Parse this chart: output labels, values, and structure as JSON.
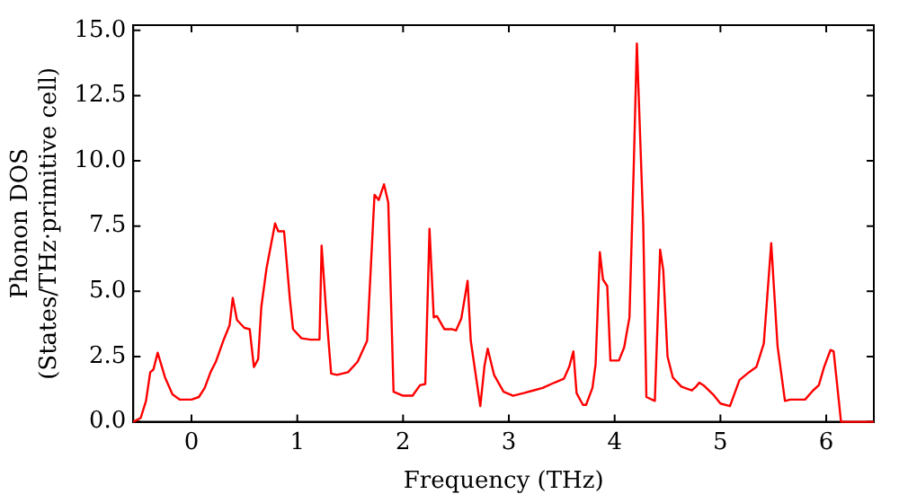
{
  "chart_data": {
    "type": "line",
    "xlabel": "Frequency (THz)",
    "ylabel": "Phonon DOS\n(States/THz·primitive cell)",
    "x": [
      -0.55,
      -0.48,
      -0.43,
      -0.39,
      -0.36,
      -0.32,
      -0.25,
      -0.18,
      -0.11,
      0,
      0.07,
      0.125,
      0.18,
      0.23,
      0.3,
      0.36,
      0.39,
      0.43,
      0.5,
      0.55,
      0.59,
      0.63,
      0.66,
      0.71,
      0.79,
      0.82,
      0.875,
      0.93,
      0.96,
      1.04,
      1.125,
      1.21,
      1.23,
      1.27,
      1.32,
      1.375,
      1.48,
      1.57,
      1.66,
      1.73,
      1.77,
      1.82,
      1.86,
      1.91,
      2.0,
      2.09,
      2.16,
      2.21,
      2.25,
      2.29,
      2.32,
      2.39,
      2.46,
      2.5,
      2.55,
      2.61,
      2.64,
      2.73,
      2.77,
      2.8,
      2.86,
      2.95,
      3.04,
      3.14,
      3.23,
      3.32,
      3.43,
      3.52,
      3.57,
      3.61,
      3.64,
      3.7,
      3.73,
      3.79,
      3.82,
      3.86,
      3.89,
      3.93,
      3.96,
      4.04,
      4.09,
      4.14,
      4.18,
      4.21,
      4.27,
      4.3,
      4.38,
      4.43,
      4.46,
      4.5,
      4.55,
      4.63,
      4.73,
      4.77,
      4.8,
      4.84,
      4.93,
      5.0,
      5.09,
      5.18,
      5.27,
      5.34,
      5.41,
      5.48,
      5.54,
      5.61,
      5.66,
      5.8,
      5.875,
      5.93,
      5.98,
      6.04,
      6.07,
      6.14,
      6.45
    ],
    "series": [
      {
        "color": "#ff0000",
        "values": [
          0,
          0.15,
          0.8,
          1.9,
          2.0,
          2.65,
          1.7,
          1.05,
          0.85,
          0.85,
          0.95,
          1.3,
          1.9,
          2.3,
          3.1,
          3.7,
          4.75,
          3.9,
          3.6,
          3.55,
          2.1,
          2.4,
          4.4,
          5.9,
          7.6,
          7.3,
          7.3,
          4.7,
          3.55,
          3.2,
          3.15,
          3.15,
          6.75,
          4.4,
          1.85,
          1.8,
          1.9,
          2.3,
          3.1,
          8.7,
          8.5,
          9.1,
          8.4,
          1.15,
          1.0,
          1.0,
          1.4,
          1.45,
          7.4,
          4.0,
          4.05,
          3.55,
          3.55,
          3.5,
          3.95,
          5.4,
          3.1,
          0.6,
          2.15,
          2.8,
          1.8,
          1.15,
          1.0,
          1.1,
          1.2,
          1.3,
          1.5,
          1.65,
          2.1,
          2.7,
          1.1,
          0.65,
          0.65,
          1.3,
          2.2,
          6.5,
          5.45,
          5.2,
          2.35,
          2.35,
          2.85,
          4.0,
          9.7,
          14.5,
          7.6,
          0.95,
          0.8,
          6.6,
          5.8,
          2.5,
          1.7,
          1.35,
          1.2,
          1.35,
          1.5,
          1.4,
          1.05,
          0.7,
          0.6,
          1.6,
          1.9,
          2.1,
          3.0,
          6.85,
          2.9,
          0.8,
          0.85,
          0.85,
          1.2,
          1.4,
          2.1,
          2.75,
          2.7,
          0,
          0
        ]
      }
    ],
    "xlim": [
      -0.55,
      6.45
    ],
    "xticks": [
      0,
      1,
      2,
      3,
      4,
      5,
      6
    ],
    "ylim": [
      0,
      15.2
    ],
    "yticks": [
      {
        "value": 0,
        "label": "0.0"
      },
      {
        "value": 2.5,
        "label": "2.5"
      },
      {
        "value": 5,
        "label": "5.0"
      },
      {
        "value": 7.5,
        "label": "7.5"
      },
      {
        "value": 10,
        "label": "10.0"
      },
      {
        "value": 12.5,
        "label": "12.5"
      },
      {
        "value": 15,
        "label": "15.0"
      }
    ],
    "grid": false,
    "legend": false,
    "marker": "none",
    "line_style": "solid"
  }
}
